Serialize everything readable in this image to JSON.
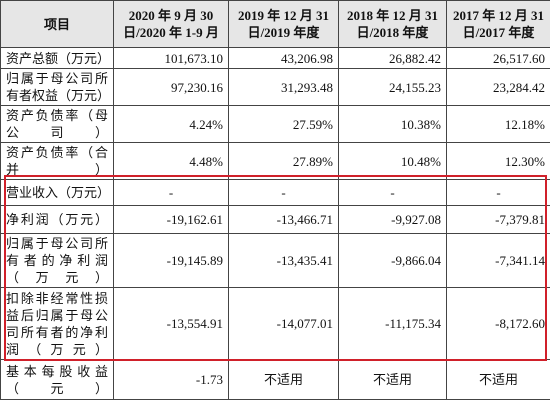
{
  "table": {
    "header": [
      [
        "项目"
      ],
      [
        "2020 年 9 月 30",
        "日/2020 年 1-9 月"
      ],
      [
        "2019 年 12 月 31",
        "日/2019 年度"
      ],
      [
        "2018 年 12 月 31",
        "日/2018 年度"
      ],
      [
        "2017 年 12 月 31",
        "日/2017 年度"
      ]
    ],
    "rows": [
      [
        "资产总额（万元）",
        "101,673.10",
        "43,206.98",
        "26,882.42",
        "26,517.60"
      ],
      [
        "归属于母公司所有者权益（万元）",
        "97,230.16",
        "31,293.48",
        "24,155.23",
        "23,284.42"
      ],
      [
        "资产负债率（母公司）",
        "4.24%",
        "27.59%",
        "10.38%",
        "12.18%"
      ],
      [
        "资产负债率（合并）",
        "4.48%",
        "27.89%",
        "10.48%",
        "12.30%"
      ],
      [
        "营业收入（万元）",
        "-",
        "-",
        "-",
        "-"
      ],
      [
        "净利润（万元）",
        "-19,162.61",
        "-13,466.71",
        "-9,927.08",
        "-7,379.81"
      ],
      [
        "归属于母公司所有者的净利润（万元）",
        "-19,145.89",
        "-13,435.41",
        "-9,866.04",
        "-7,341.14"
      ],
      [
        "扣除非经常性损益后归属于母公司所有者的净利润（万元）",
        "-13,554.91",
        "-14,077.01",
        "-11,175.34",
        "-8,172.60"
      ],
      [
        "基本每股收益（元）",
        "-1.73",
        "不适用",
        "不适用",
        "不适用"
      ]
    ]
  }
}
